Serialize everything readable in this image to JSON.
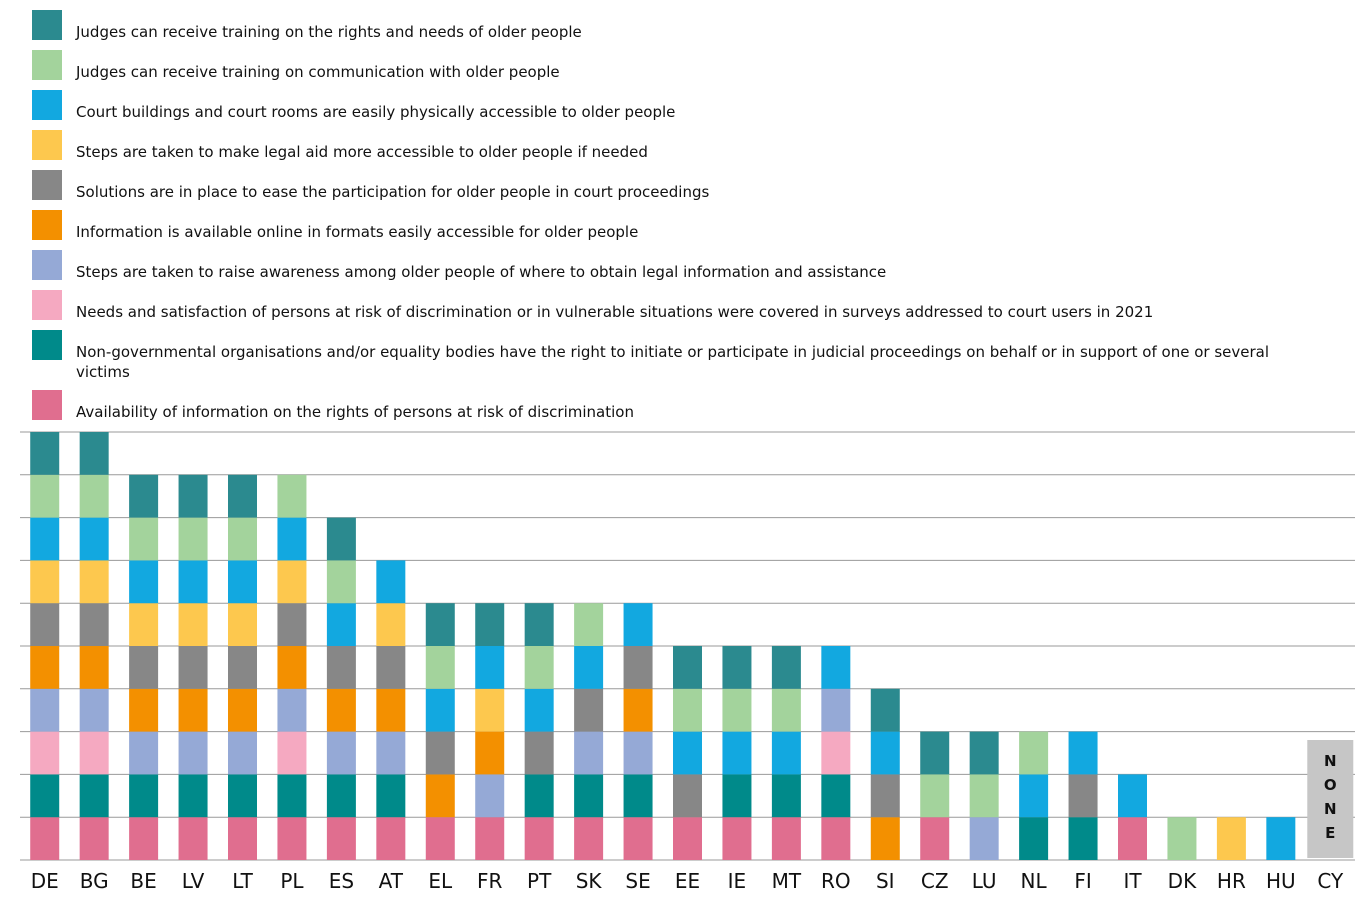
{
  "chart_data": {
    "type": "stacked_bar",
    "categories": [
      "DE",
      "BG",
      "BE",
      "LV",
      "LT",
      "PL",
      "ES",
      "AT",
      "EL",
      "FR",
      "PT",
      "SK",
      "SE",
      "EE",
      "IE",
      "MT",
      "RO",
      "SI",
      "CZ",
      "LU",
      "NL",
      "FI",
      "IT",
      "DK",
      "HR",
      "HU",
      "CY"
    ],
    "series": [
      {
        "name": "Judges can receive training on the rights and needs of older people",
        "color": "#2b8a8f",
        "values": [
          1,
          1,
          1,
          1,
          1,
          0,
          1,
          0,
          1,
          1,
          1,
          0,
          0,
          1,
          1,
          1,
          0,
          1,
          1,
          1,
          0,
          0,
          0,
          0,
          0,
          0,
          0
        ]
      },
      {
        "name": "Judges can receive training on  communication with older people",
        "color": "#a3d39c",
        "values": [
          1,
          1,
          1,
          1,
          1,
          1,
          1,
          0,
          1,
          0,
          1,
          1,
          0,
          1,
          1,
          1,
          0,
          0,
          1,
          1,
          1,
          0,
          0,
          1,
          0,
          0,
          0
        ]
      },
      {
        "name": "Court buildings and court rooms are easily physically accessible to older people",
        "color": "#12a8e0",
        "values": [
          1,
          1,
          1,
          1,
          1,
          1,
          1,
          1,
          1,
          1,
          1,
          1,
          1,
          1,
          1,
          1,
          1,
          1,
          0,
          0,
          1,
          1,
          1,
          0,
          0,
          1,
          0
        ]
      },
      {
        "name": "Steps are taken to make legal aid more accessible to older people if needed",
        "color": "#fdc84e",
        "values": [
          1,
          1,
          1,
          1,
          1,
          1,
          0,
          1,
          0,
          1,
          0,
          0,
          0,
          0,
          0,
          0,
          0,
          0,
          0,
          0,
          0,
          0,
          0,
          0,
          1,
          0,
          0
        ]
      },
      {
        "name": "Solutions are in place to ease the participation for older people in court proceedings",
        "color": "#878787",
        "values": [
          1,
          1,
          1,
          1,
          1,
          1,
          1,
          1,
          1,
          0,
          1,
          1,
          1,
          1,
          0,
          0,
          0,
          1,
          0,
          0,
          0,
          1,
          0,
          0,
          0,
          0,
          0
        ]
      },
      {
        "name": "Information is available online in formats easily accessible for older people",
        "color": "#f39000",
        "values": [
          1,
          1,
          1,
          1,
          1,
          1,
          1,
          1,
          1,
          1,
          0,
          0,
          1,
          0,
          0,
          0,
          0,
          1,
          0,
          0,
          0,
          0,
          0,
          0,
          0,
          0,
          0
        ]
      },
      {
        "name": "Steps are taken to raise awareness among older people of where to obtain legal information and assistance",
        "color": "#95a9d6",
        "values": [
          1,
          1,
          1,
          1,
          1,
          1,
          1,
          1,
          0,
          1,
          0,
          1,
          1,
          0,
          0,
          0,
          1,
          0,
          0,
          1,
          0,
          0,
          0,
          0,
          0,
          0,
          0
        ]
      },
      {
        "name": "Needs and satisfaction of persons at risk of discrimination or in vulnerable situations were covered in surveys addressed to court users in 2021",
        "color": "#f5a9c1",
        "values": [
          1,
          1,
          0,
          0,
          0,
          1,
          0,
          0,
          0,
          0,
          0,
          0,
          0,
          0,
          0,
          0,
          1,
          0,
          0,
          0,
          0,
          0,
          0,
          0,
          0,
          0,
          0
        ]
      },
      {
        "name": "Non-governmental organisations and/or equality bodies have the right to initiate or participate in judicial proceedings on behalf or in support of one or several victims",
        "color": "#008a8a",
        "values": [
          1,
          1,
          1,
          1,
          1,
          1,
          1,
          1,
          0,
          0,
          1,
          1,
          1,
          0,
          1,
          1,
          1,
          0,
          0,
          0,
          1,
          1,
          0,
          0,
          0,
          0,
          0
        ]
      },
      {
        "name": "Availability of information on the rights of persons at risk of discrimination",
        "color": "#e06e8f",
        "values": [
          1,
          1,
          1,
          1,
          1,
          1,
          1,
          1,
          1,
          1,
          1,
          1,
          1,
          1,
          1,
          1,
          1,
          0,
          1,
          0,
          0,
          0,
          1,
          0,
          0,
          0,
          0
        ]
      }
    ],
    "stack_order": "last-series-bottom",
    "ylim": [
      0,
      10
    ],
    "yticks": [
      0,
      1,
      2,
      3,
      4,
      5,
      6,
      7,
      8,
      9,
      10
    ],
    "grid": true,
    "annotations": [
      {
        "text": "NONE",
        "category": "CY"
      }
    ]
  }
}
